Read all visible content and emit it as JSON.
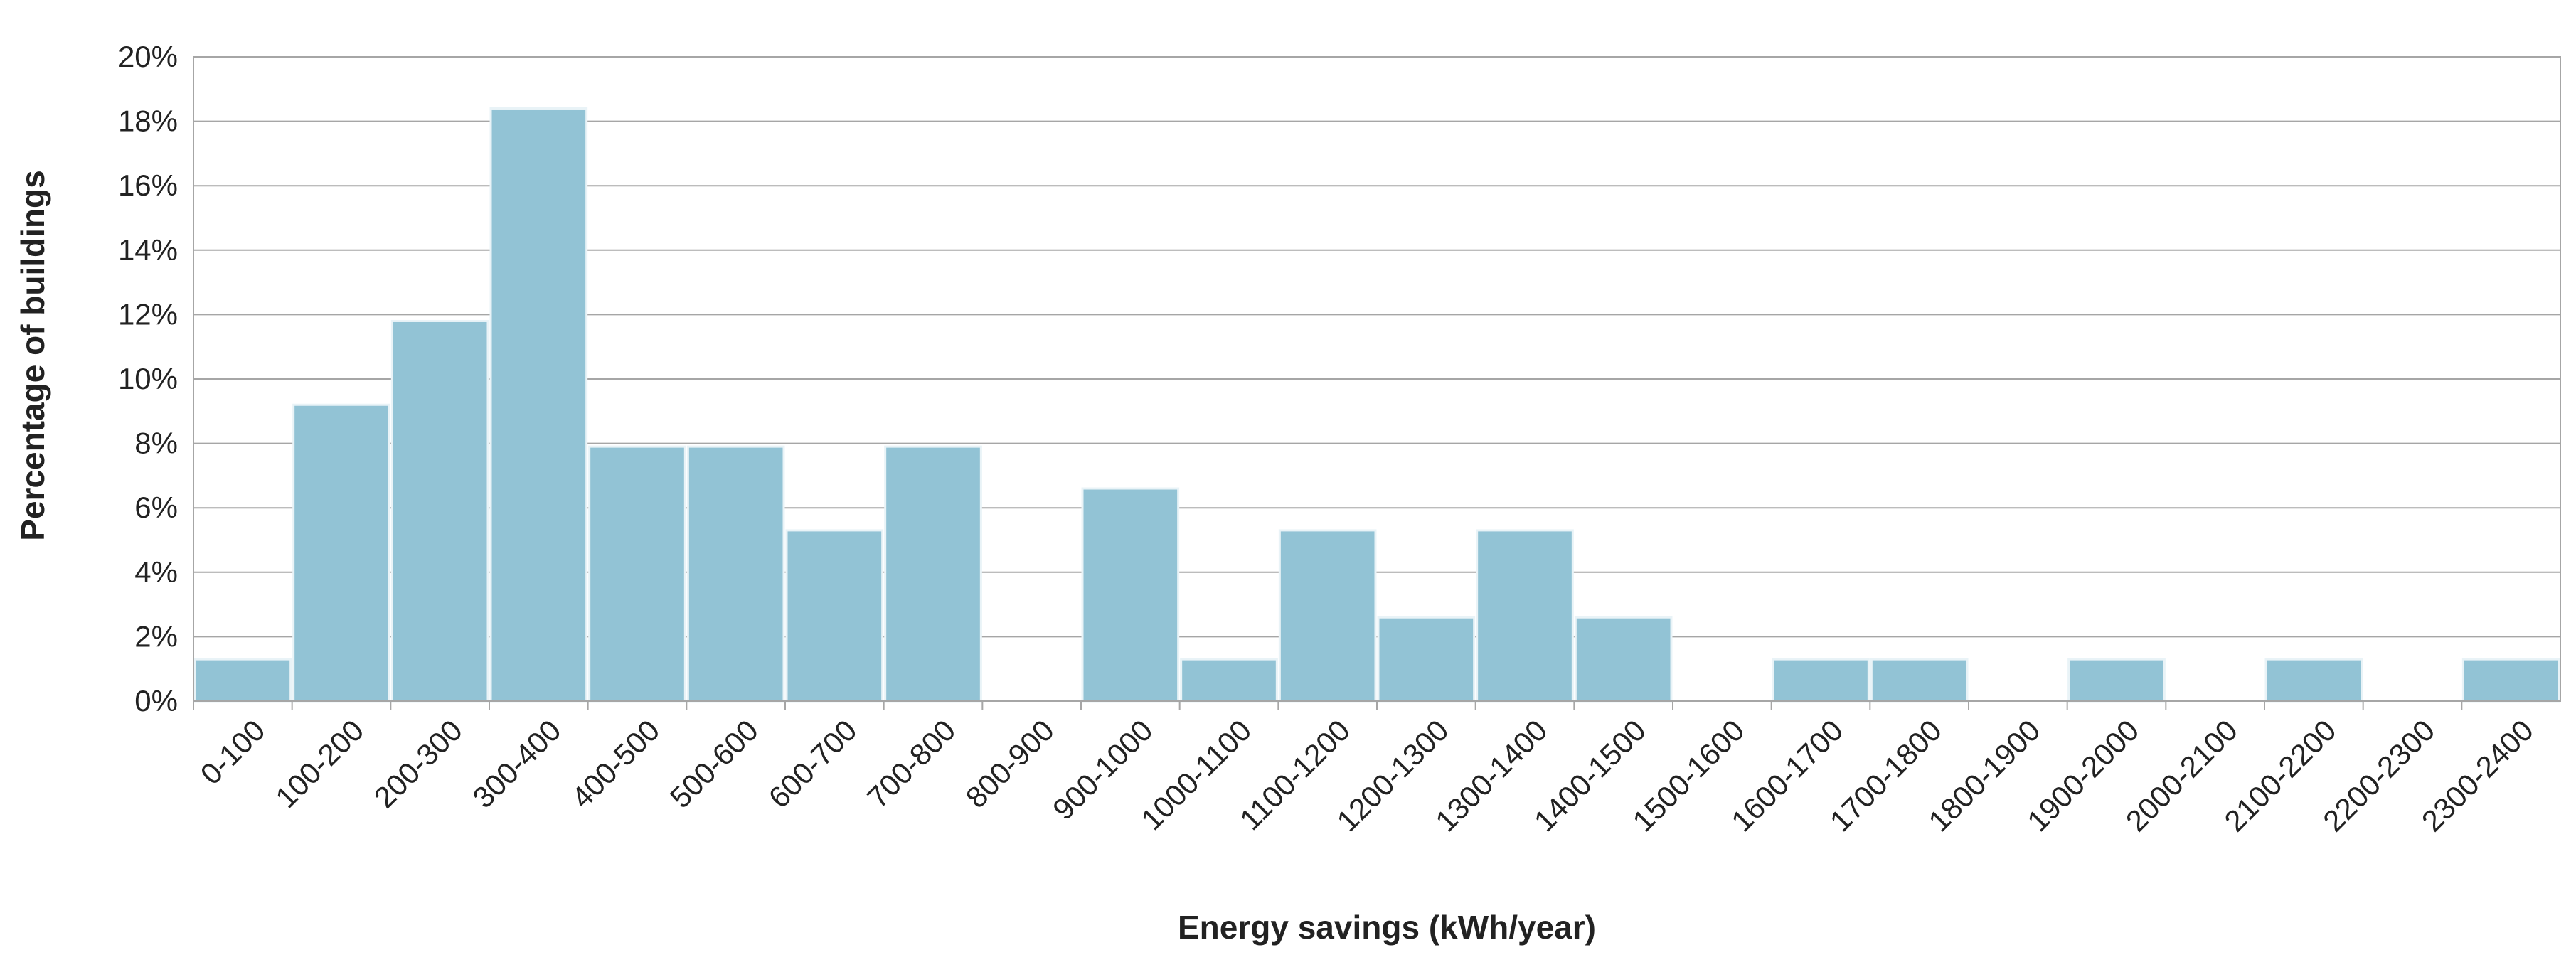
{
  "chart_data": {
    "type": "bar",
    "title": "",
    "xlabel": "Energy savings (kWh/year)",
    "ylabel": "Percentage of buildings",
    "ylim": [
      0,
      20
    ],
    "ytick_step": 2,
    "ytick_suffix": "%",
    "grid": true,
    "legend": "none",
    "bar_color": "#92c3d5",
    "grid_color": "#a6a6a6",
    "categories": [
      "0-100",
      "100-200",
      "200-300",
      "300-400",
      "400-500",
      "500-600",
      "600-700",
      "700-800",
      "800-900",
      "900-1000",
      "1000-1100",
      "1100-1200",
      "1200-1300",
      "1300-1400",
      "1400-1500",
      "1500-1600",
      "1600-1700",
      "1700-1800",
      "1800-1900",
      "1900-2000",
      "2000-2100",
      "2100-2200",
      "2200-2300",
      "2300-2400"
    ],
    "values": [
      1.3,
      9.2,
      11.8,
      18.4,
      7.9,
      7.9,
      5.3,
      7.9,
      0,
      6.6,
      1.3,
      5.3,
      2.6,
      5.3,
      2.6,
      0,
      1.3,
      1.3,
      0,
      1.3,
      0,
      1.3,
      0,
      1.3
    ]
  }
}
